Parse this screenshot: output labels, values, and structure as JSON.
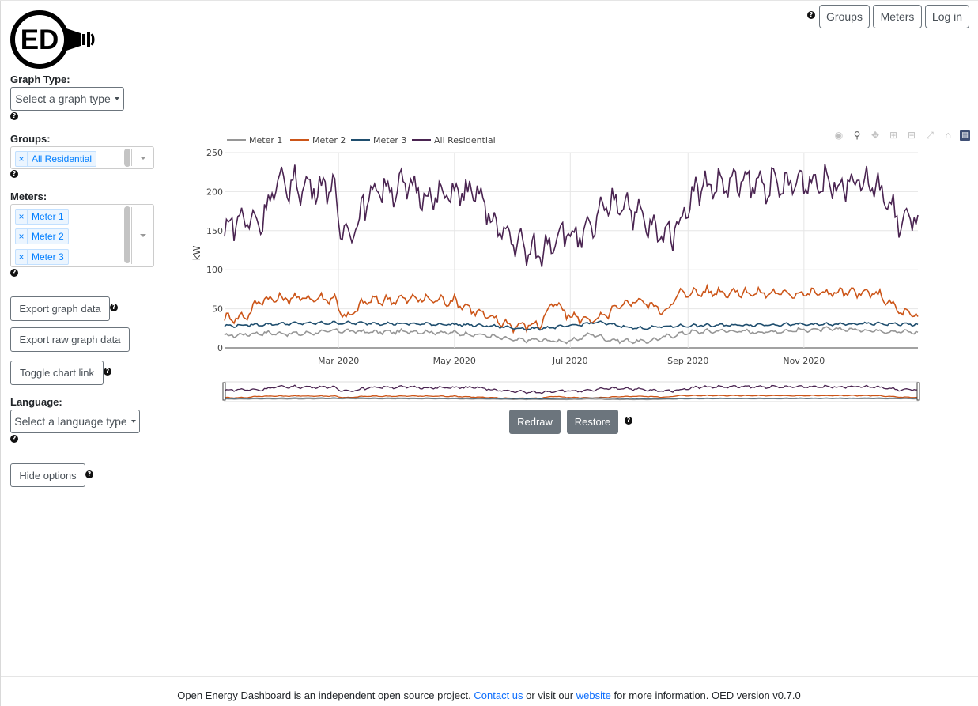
{
  "brand": {
    "logo_text": "ED"
  },
  "header": {
    "help_glyph": "?",
    "groups_label": "Groups",
    "meters_label": "Meters",
    "login_label": "Log in"
  },
  "sidebar": {
    "graph_type": {
      "label": "Graph Type:",
      "button": "Select a graph type"
    },
    "groups": {
      "label": "Groups:",
      "tags": [
        "All Residential"
      ]
    },
    "meters": {
      "label": "Meters:",
      "tags": [
        "Meter 1",
        "Meter 2",
        "Meter 3"
      ]
    },
    "export_graph": "Export graph data",
    "export_raw": "Export raw graph data",
    "toggle_link": "Toggle chart link",
    "language": {
      "label": "Language:",
      "button": "Select a language type"
    },
    "hide_options": "Hide options",
    "remove_glyph": "×"
  },
  "graph_buttons": {
    "redraw": "Redraw",
    "restore": "Restore"
  },
  "modebar": [
    "camera-icon",
    "zoom-icon",
    "pan-icon",
    "zoom-in-icon",
    "zoom-out-icon",
    "autoscale-icon",
    "reset-axes-icon",
    "plotly-logo-icon"
  ],
  "chart_data": {
    "type": "line",
    "ylabel": "kW",
    "xlabel": "",
    "ylim": [
      0,
      250
    ],
    "yticks": [
      0,
      50,
      100,
      150,
      200,
      250
    ],
    "xlim": [
      "2020-01-01",
      "2020-12-31"
    ],
    "xticks": [
      {
        "date": "2020-03-01",
        "label": "Mar 2020"
      },
      {
        "date": "2020-05-01",
        "label": "May 2020"
      },
      {
        "date": "2020-07-01",
        "label": "Jul 2020"
      },
      {
        "date": "2020-09-01",
        "label": "Sep 2020"
      },
      {
        "date": "2020-11-01",
        "label": "Nov 2020"
      }
    ],
    "grid": true,
    "legend_position": "top-left",
    "series": [
      {
        "name": "Meter 1",
        "color": "#969696",
        "points": [
          [
            "2020-01-01",
            15
          ],
          [
            "2020-01-20",
            19
          ],
          [
            "2020-02-10",
            18
          ],
          [
            "2020-03-01",
            22
          ],
          [
            "2020-03-20",
            20
          ],
          [
            "2020-04-10",
            21
          ],
          [
            "2020-05-01",
            19
          ],
          [
            "2020-05-18",
            16
          ],
          [
            "2020-06-01",
            10
          ],
          [
            "2020-06-15",
            10
          ],
          [
            "2020-07-01",
            8
          ],
          [
            "2020-07-12",
            18
          ],
          [
            "2020-07-22",
            10
          ],
          [
            "2020-08-10",
            8
          ],
          [
            "2020-08-20",
            14
          ],
          [
            "2020-09-01",
            20
          ],
          [
            "2020-09-20",
            22
          ],
          [
            "2020-10-10",
            20
          ],
          [
            "2020-11-01",
            23
          ],
          [
            "2020-11-20",
            24
          ],
          [
            "2020-12-10",
            22
          ],
          [
            "2020-12-31",
            20
          ]
        ]
      },
      {
        "name": "Meter 2",
        "color": "#cc5518",
        "points": [
          [
            "2020-01-01",
            38
          ],
          [
            "2020-01-12",
            40
          ],
          [
            "2020-01-20",
            62
          ],
          [
            "2020-02-10",
            64
          ],
          [
            "2020-02-28",
            63
          ],
          [
            "2020-03-05",
            36
          ],
          [
            "2020-03-15",
            60
          ],
          [
            "2020-04-10",
            63
          ],
          [
            "2020-05-01",
            60
          ],
          [
            "2020-05-18",
            40
          ],
          [
            "2020-06-01",
            28
          ],
          [
            "2020-06-15",
            30
          ],
          [
            "2020-06-22",
            58
          ],
          [
            "2020-07-01",
            40
          ],
          [
            "2020-07-15",
            35
          ],
          [
            "2020-07-25",
            50
          ],
          [
            "2020-08-05",
            62
          ],
          [
            "2020-08-20",
            47
          ],
          [
            "2020-08-28",
            70
          ],
          [
            "2020-09-15",
            72
          ],
          [
            "2020-10-10",
            70
          ],
          [
            "2020-11-01",
            70
          ],
          [
            "2020-11-20",
            71
          ],
          [
            "2020-12-10",
            69
          ],
          [
            "2020-12-22",
            46
          ],
          [
            "2020-12-31",
            40
          ]
        ]
      },
      {
        "name": "Meter 3",
        "color": "#1f4e6e",
        "points": [
          [
            "2020-01-01",
            28
          ],
          [
            "2020-02-01",
            31
          ],
          [
            "2020-03-01",
            32
          ],
          [
            "2020-04-01",
            31
          ],
          [
            "2020-05-01",
            30
          ],
          [
            "2020-05-20",
            28
          ],
          [
            "2020-06-10",
            24
          ],
          [
            "2020-07-01",
            28
          ],
          [
            "2020-07-15",
            33
          ],
          [
            "2020-08-05",
            25
          ],
          [
            "2020-08-25",
            28
          ],
          [
            "2020-09-20",
            29
          ],
          [
            "2020-10-20",
            30
          ],
          [
            "2020-11-15",
            30
          ],
          [
            "2020-12-10",
            31
          ],
          [
            "2020-12-31",
            30
          ]
        ]
      },
      {
        "name": "All Residential",
        "color": "#4a2451",
        "points": [
          [
            "2020-01-01",
            140
          ],
          [
            "2020-01-03",
            160
          ],
          [
            "2020-01-10",
            165
          ],
          [
            "2020-01-20",
            162
          ],
          [
            "2020-01-27",
            205
          ],
          [
            "2020-02-05",
            210
          ],
          [
            "2020-02-15",
            205
          ],
          [
            "2020-02-27",
            210
          ],
          [
            "2020-03-01",
            155
          ],
          [
            "2020-03-08",
            150
          ],
          [
            "2020-03-20",
            205
          ],
          [
            "2020-04-10",
            205
          ],
          [
            "2020-04-20",
            190
          ],
          [
            "2020-05-01",
            200
          ],
          [
            "2020-05-14",
            195
          ],
          [
            "2020-05-24",
            150
          ],
          [
            "2020-06-01",
            140
          ],
          [
            "2020-06-08",
            125
          ],
          [
            "2020-06-15",
            120
          ],
          [
            "2020-06-25",
            150
          ],
          [
            "2020-07-01",
            145
          ],
          [
            "2020-07-08",
            140
          ],
          [
            "2020-07-20",
            180
          ],
          [
            "2020-07-28",
            190
          ],
          [
            "2020-08-08",
            165
          ],
          [
            "2020-08-16",
            145
          ],
          [
            "2020-08-25",
            150
          ],
          [
            "2020-09-05",
            205
          ],
          [
            "2020-09-20",
            210
          ],
          [
            "2020-10-10",
            210
          ],
          [
            "2020-10-20",
            205
          ],
          [
            "2020-11-01",
            215
          ],
          [
            "2020-11-20",
            210
          ],
          [
            "2020-12-01",
            215
          ],
          [
            "2020-12-12",
            200
          ],
          [
            "2020-12-20",
            165
          ],
          [
            "2020-12-26",
            160
          ],
          [
            "2020-12-31",
            170
          ]
        ]
      }
    ]
  },
  "footer": {
    "text1": "Open Energy Dashboard is an independent open source project.",
    "contact": "Contact us",
    "text2": "or visit our",
    "website": "website",
    "text3": "for more information. OED version v0.7.0"
  }
}
